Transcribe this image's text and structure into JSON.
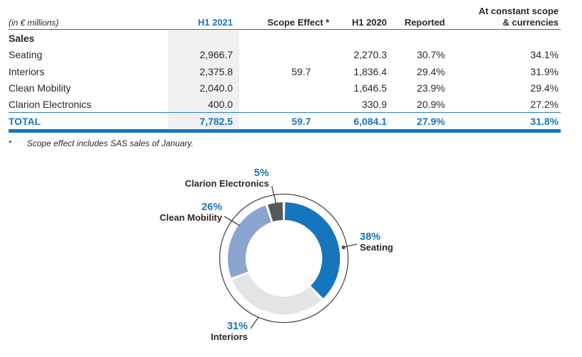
{
  "table": {
    "unit_label": "(in € millions)",
    "headers": {
      "h1_2021": "H1 2021",
      "scope_effect": "Scope Effect *",
      "h1_2020": "H1 2020",
      "reported": "Reported",
      "constant_line1": "At constant scope",
      "constant_line2": "& currencies"
    },
    "section_label": "Sales",
    "rows": [
      {
        "label": "Seating",
        "h1_2021": "2,966.7",
        "scope_effect": "",
        "h1_2020": "2,270.3",
        "reported": "30.7%",
        "constant": "34.1%"
      },
      {
        "label": "Interiors",
        "h1_2021": "2,375.8",
        "scope_effect": "59.7",
        "h1_2020": "1,836.4",
        "reported": "29.4%",
        "constant": "31.9%"
      },
      {
        "label": "Clean Mobility",
        "h1_2021": "2,040.0",
        "scope_effect": "",
        "h1_2020": "1,646.5",
        "reported": "23.9%",
        "constant": "29.4%"
      },
      {
        "label": "Clarion Electronics",
        "h1_2021": "400.0",
        "scope_effect": "",
        "h1_2020": "330.9",
        "reported": "20.9%",
        "constant": "27.2%"
      }
    ],
    "total": {
      "label": "TOTAL",
      "h1_2021": "7,782.5",
      "scope_effect": "59.7",
      "h1_2020": "6,084.1",
      "reported": "27.9%",
      "constant": "31.8%"
    },
    "footnote": {
      "marker": "*",
      "text": "Scope effect includes SAS sales of January."
    }
  },
  "chart_data": {
    "type": "pie",
    "subtype": "donut",
    "title": "",
    "start_angle_deg": 0,
    "direction": "clockwise",
    "legend_position": "around",
    "segments": [
      {
        "label": "Seating",
        "value": 38,
        "pct_label": "38%",
        "color": "#1576bd"
      },
      {
        "label": "Interiors",
        "value": 31,
        "pct_label": "31%",
        "color": "#e3e4e6"
      },
      {
        "label": "Clean Mobility",
        "value": 26,
        "pct_label": "26%",
        "color": "#8ca5d0"
      },
      {
        "label": "Clarion Electronics",
        "value": 5,
        "pct_label": "5%",
        "color": "#58585a"
      }
    ]
  },
  "colors": {
    "accent_blue": "#1576bd",
    "shaded_column": "#f0f0f1",
    "light_blue_slice": "#8ca5d0",
    "light_gray_slice": "#e3e4e6",
    "dark_gray_slice": "#58585a",
    "outline_gray": "#4a4a4c",
    "text_dark": "#2b2826"
  }
}
